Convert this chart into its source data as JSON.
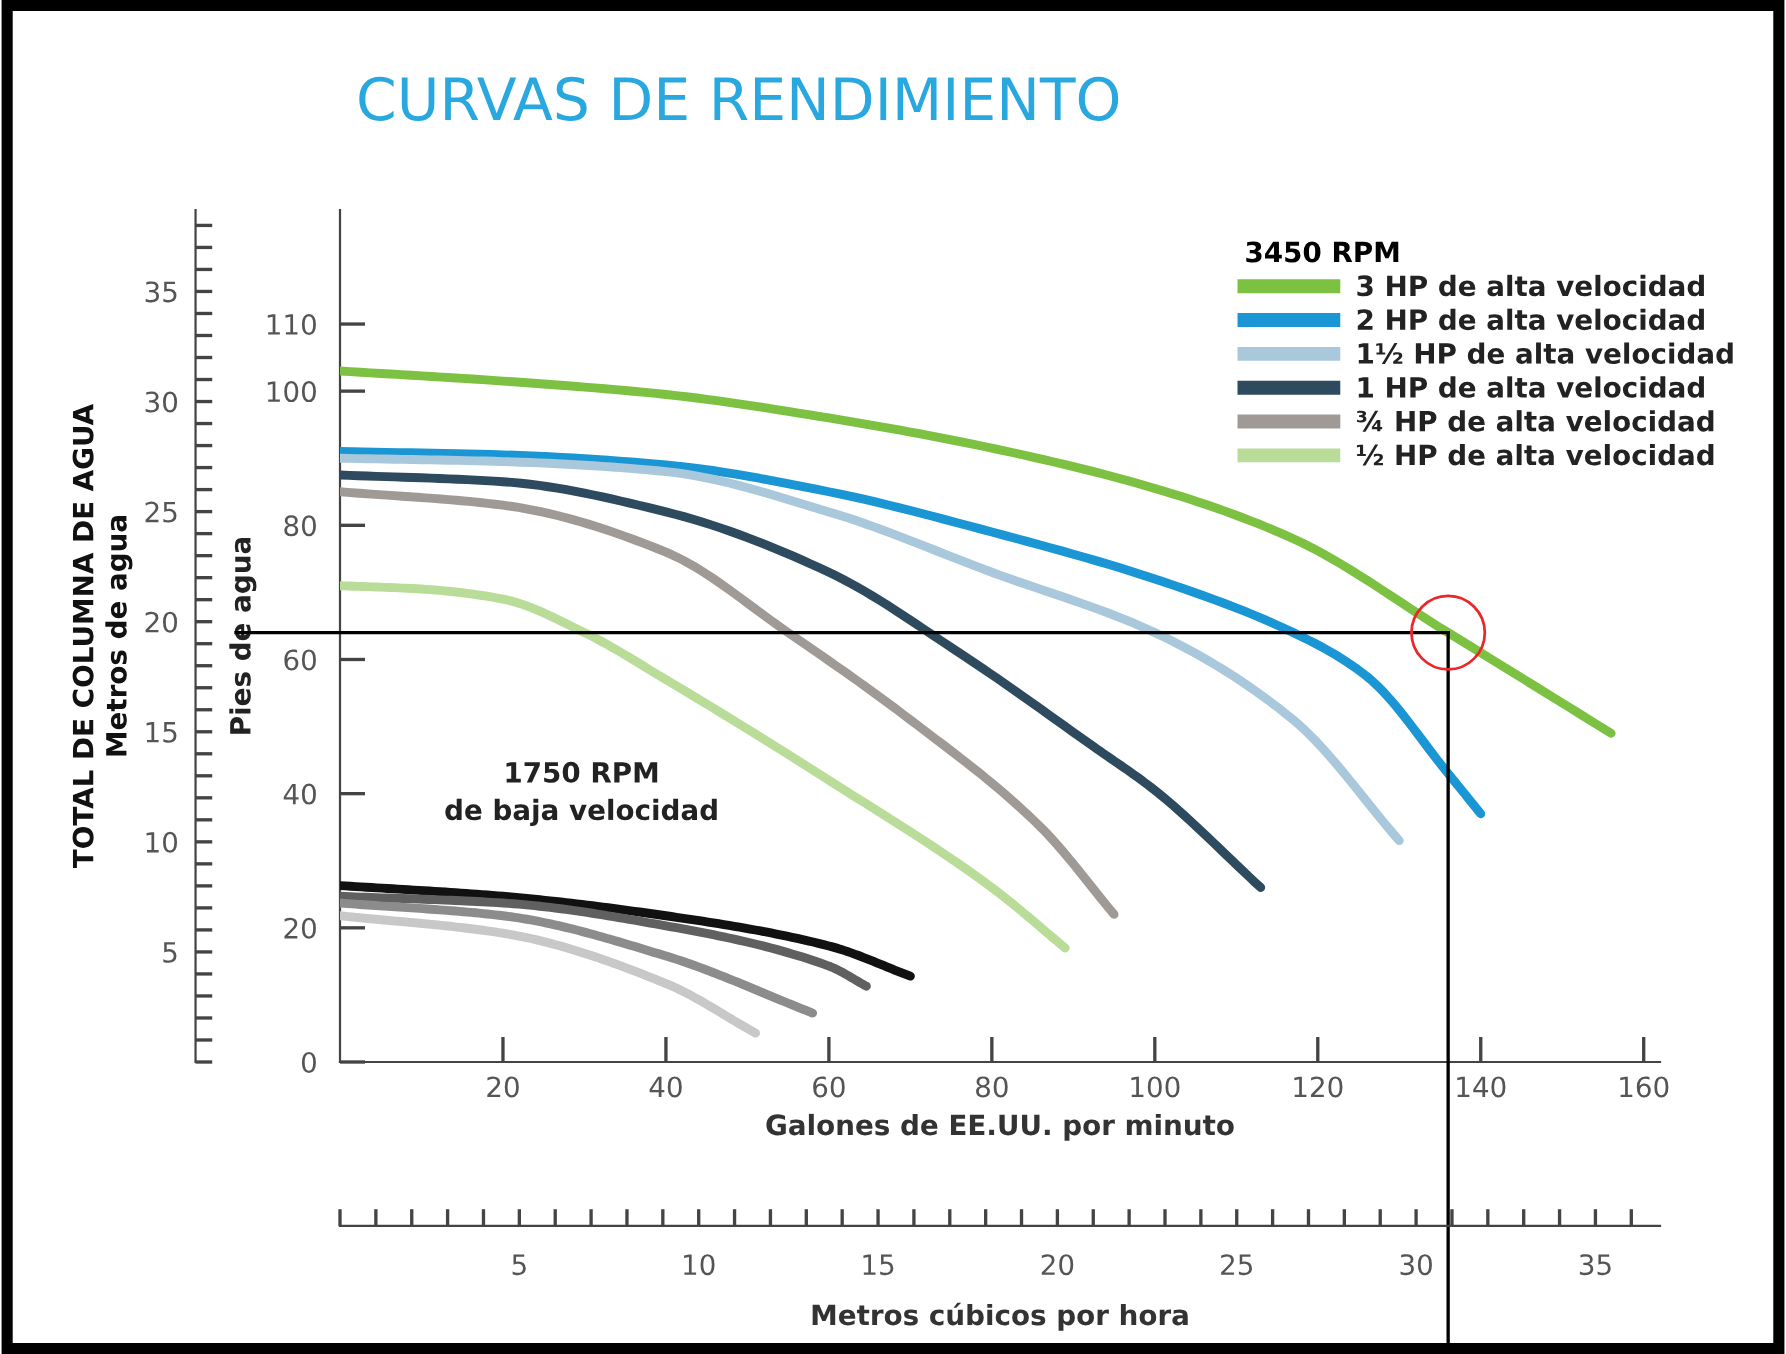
{
  "chart_data": {
    "type": "line",
    "title": "CURVAS DE RENDIMIENTO",
    "xlabel": "Galones de EE.UU. por minuto",
    "ylabel": "Pies de agua",
    "y2label": "TOTAL DE COLUMNA DE AGUA\nMetros de agua",
    "x2label": "Metros cúbicos por hora",
    "legend_title": "3450 RPM",
    "legend": "top right",
    "line_style": "solid",
    "annotations": [
      "1750 RPM\nde baja velocidad"
    ],
    "series": [
      {
        "name": "3 HP de alta velocidad",
        "color": "#7dc142",
        "x": [
          0,
          20,
          40,
          60,
          80,
          100,
          117,
          136,
          156
        ],
        "values": [
          103,
          101.5,
          99.5,
          96,
          91.5,
          85.5,
          78,
          64,
          49
        ]
      },
      {
        "name": "2 HP de alta velocidad",
        "color": "#1a96d4",
        "x": [
          0,
          20,
          40,
          60,
          80,
          100,
          117,
          126,
          136,
          140
        ],
        "values": [
          91,
          90.5,
          89,
          85,
          79,
          72,
          64,
          57.5,
          43,
          37
        ]
      },
      {
        "name": "1½ HP de alta velocidad",
        "color": "#a9c8dc",
        "x": [
          0,
          20,
          40,
          60,
          80,
          100,
          117,
          130
        ],
        "values": [
          90,
          89.5,
          88,
          82,
          73,
          64,
          51,
          33
        ]
      },
      {
        "name": "1 HP de alta velocidad",
        "color": "#2d4a5e",
        "x": [
          0,
          20,
          40,
          60,
          76,
          92.5,
          100,
          113
        ],
        "values": [
          87.5,
          86.5,
          82,
          73,
          61,
          47,
          40.5,
          26
        ]
      },
      {
        "name": "¾ HP de alta velocidad",
        "color": "#a09a96",
        "x": [
          0,
          20,
          40,
          55,
          70,
          86,
          95
        ],
        "values": [
          85,
          83,
          76,
          64,
          51,
          35,
          22
        ]
      },
      {
        "name": "½ HP de alta velocidad",
        "color": "#b9dd98",
        "x": [
          0,
          10,
          20,
          30,
          40,
          60,
          80,
          89
        ],
        "values": [
          71,
          70.5,
          69,
          64,
          57,
          42,
          26,
          17
        ]
      },
      {
        "color": "#111111",
        "x": [
          0,
          20,
          40,
          60,
          70
        ],
        "values": [
          26.3,
          24.7,
          21.8,
          17.3,
          12.8
        ]
      },
      {
        "color": "#606060",
        "x": [
          0,
          20,
          40,
          60,
          64.6
        ],
        "values": [
          24.7,
          23.7,
          20.3,
          14.3,
          11.3
        ]
      },
      {
        "color": "#8c8c8c",
        "x": [
          0,
          20,
          40,
          58
        ],
        "values": [
          23.7,
          21.8,
          15.8,
          7.3
        ]
      },
      {
        "color": "#c8c8c8",
        "x": [
          0,
          20,
          40,
          51
        ],
        "values": [
          21.8,
          19.2,
          11.7,
          4.3
        ]
      }
    ],
    "xlim": [
      0,
      162
    ],
    "xticks": [
      20,
      40,
      60,
      80,
      100,
      120,
      140,
      160
    ],
    "ylim": [
      0,
      127
    ],
    "yticks": [
      0,
      20,
      40,
      60,
      80,
      100,
      110
    ],
    "y2lim": [
      0,
      38.7
    ],
    "y2ticks": [
      5,
      10,
      15,
      20,
      25,
      30,
      35
    ],
    "x2lim": [
      0,
      36.8
    ],
    "x2ticks": [
      5,
      10,
      15,
      20,
      25,
      30,
      35
    ],
    "ref_lines": [
      {
        "axis": "y",
        "value": 64,
        "color": "#000000"
      },
      {
        "axis": "x",
        "value": 136,
        "color": "#000000"
      }
    ]
  }
}
